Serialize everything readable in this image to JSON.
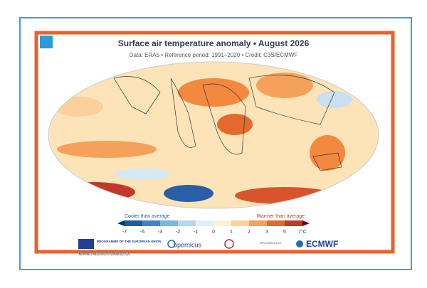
{
  "header": {
    "title": "Surface air temperature anomaly • August 2026",
    "subtitle": "Data: ERA5 • Reference period: 1991–2020 • Credit: C3S/ECMWF"
  },
  "legend": {
    "cooler": "Cooler than average",
    "warmer": "Warmer than average",
    "ticks": [
      "-7",
      "-5",
      "-3",
      "-2",
      "-1",
      "0",
      "1",
      "2",
      "3",
      "5",
      "7°C"
    ]
  },
  "footer": {
    "eu": "PROGRAMME OF THE EUROPEAN UNION",
    "copernicus": "opernicus",
    "implemented": "IMPLEMENTED BY",
    "ecmwf": "ECMWF",
    "watermark": "www.radiomonastir.tn"
  }
}
